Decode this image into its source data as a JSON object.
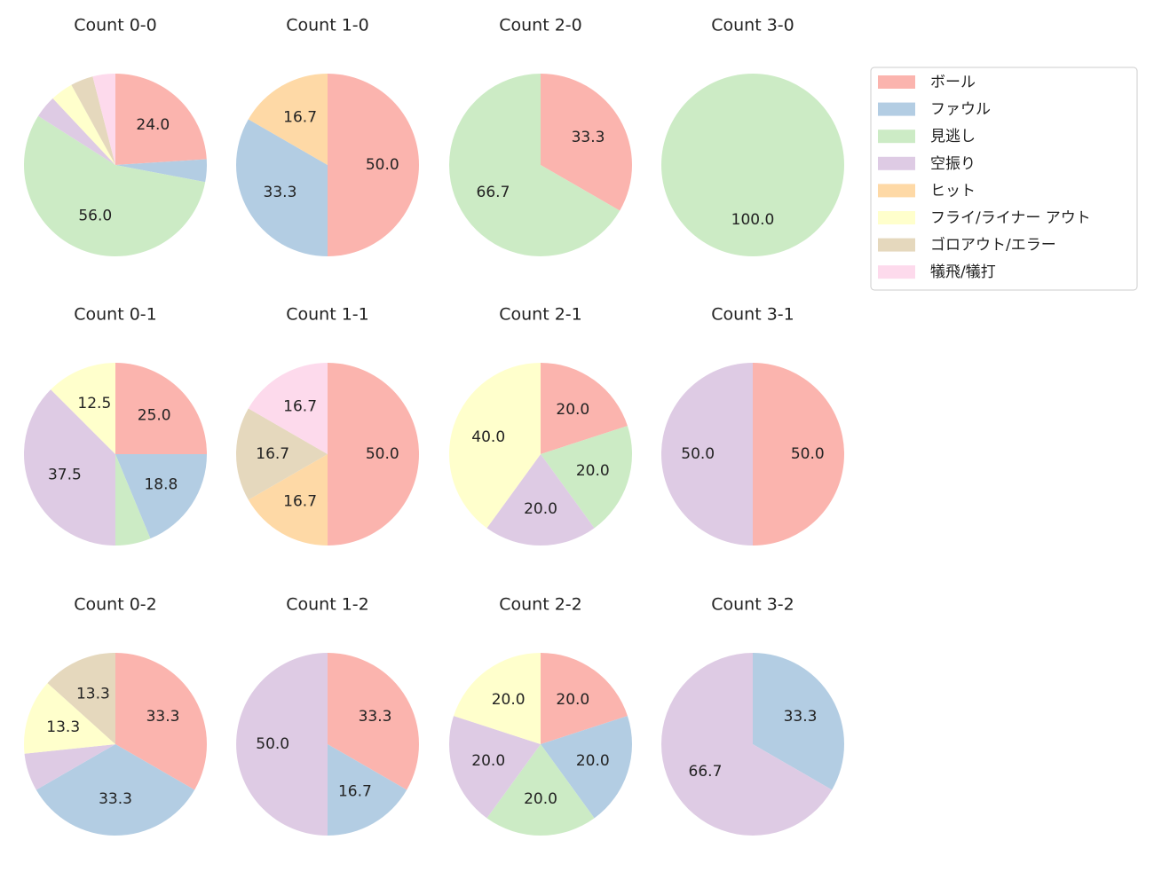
{
  "legend": {
    "categories": [
      "ボール",
      "ファウル",
      "見逃し",
      "空振り",
      "ヒット",
      "フライ/ライナー アウト",
      "ゴロアウト/エラー",
      "犠飛/犠打"
    ],
    "colors": [
      "#fbb4ae",
      "#b3cde3",
      "#ccebc5",
      "#decbe4",
      "#fed9a6",
      "#ffffcc",
      "#e5d8bd",
      "#fddaec"
    ]
  },
  "chart_data": [
    {
      "type": "pie",
      "title": "Count 0-0",
      "values": [
        24,
        4,
        56,
        4,
        0,
        4,
        4,
        4
      ],
      "value_labels": [
        "24.0",
        null,
        "56.0",
        null,
        null,
        null,
        null,
        null
      ]
    },
    {
      "type": "pie",
      "title": "Count 1-0",
      "values": [
        50,
        33.33,
        0,
        0,
        16.67,
        0,
        0,
        0
      ],
      "value_labels": [
        "50.0",
        "33.3",
        null,
        null,
        "16.7",
        null,
        null,
        null
      ]
    },
    {
      "type": "pie",
      "title": "Count 2-0",
      "values": [
        33.33,
        0,
        66.67,
        0,
        0,
        0,
        0,
        0
      ],
      "value_labels": [
        "33.3",
        null,
        "66.7",
        null,
        null,
        null,
        null,
        null
      ]
    },
    {
      "type": "pie",
      "title": "Count 3-0",
      "values": [
        0,
        0,
        100,
        0,
        0,
        0,
        0,
        0
      ],
      "value_labels": [
        null,
        null,
        "100.0",
        null,
        null,
        null,
        null,
        null
      ]
    },
    {
      "type": "pie",
      "title": "Count 0-1",
      "values": [
        25,
        18.75,
        6.25,
        37.5,
        0,
        12.5,
        0,
        0
      ],
      "value_labels": [
        "25.0",
        "18.8",
        null,
        "37.5",
        null,
        "12.5",
        null,
        null
      ]
    },
    {
      "type": "pie",
      "title": "Count 1-1",
      "values": [
        50,
        0,
        0,
        0,
        16.67,
        0,
        16.67,
        16.67
      ],
      "value_labels": [
        "50.0",
        null,
        null,
        null,
        "16.7",
        null,
        "16.7",
        "16.7"
      ]
    },
    {
      "type": "pie",
      "title": "Count 2-1",
      "values": [
        20,
        0,
        20,
        20,
        0,
        40,
        0,
        0
      ],
      "value_labels": [
        "20.0",
        null,
        "20.0",
        "20.0",
        null,
        "40.0",
        null,
        null
      ]
    },
    {
      "type": "pie",
      "title": "Count 3-1",
      "values": [
        50,
        0,
        0,
        50,
        0,
        0,
        0,
        0
      ],
      "value_labels": [
        "50.0",
        null,
        null,
        "50.0",
        null,
        null,
        null,
        null
      ]
    },
    {
      "type": "pie",
      "title": "Count 0-2",
      "values": [
        33.33,
        33.33,
        0,
        6.67,
        0,
        13.33,
        13.33,
        0
      ],
      "value_labels": [
        "33.3",
        "33.3",
        null,
        null,
        null,
        "13.3",
        "13.3",
        null
      ]
    },
    {
      "type": "pie",
      "title": "Count 1-2",
      "values": [
        33.33,
        16.67,
        0,
        50,
        0,
        0,
        0,
        0
      ],
      "value_labels": [
        "33.3",
        "16.7",
        null,
        "50.0",
        null,
        null,
        null,
        null
      ]
    },
    {
      "type": "pie",
      "title": "Count 2-2",
      "values": [
        20,
        20,
        20,
        20,
        0,
        20,
        0,
        0
      ],
      "value_labels": [
        "20.0",
        "20.0",
        "20.0",
        "20.0",
        null,
        "20.0",
        null,
        null
      ]
    },
    {
      "type": "pie",
      "title": "Count 3-2",
      "values": [
        0,
        33.33,
        0,
        66.67,
        0,
        0,
        0,
        0
      ],
      "value_labels": [
        null,
        "33.3",
        null,
        "66.7",
        null,
        null,
        null,
        null
      ]
    }
  ]
}
